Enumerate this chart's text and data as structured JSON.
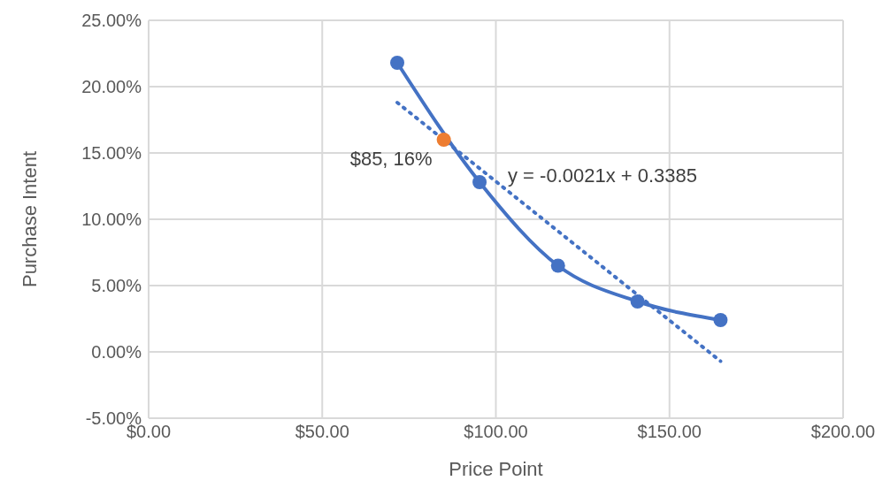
{
  "chart_data": {
    "type": "line",
    "xlabel": "Price Point",
    "ylabel": "Purchase Intent",
    "xlim": [
      0,
      200
    ],
    "xticks": [
      {
        "value": 0,
        "label": "$0.00"
      },
      {
        "value": 50,
        "label": "$50.00"
      },
      {
        "value": 100,
        "label": "$100.00"
      },
      {
        "value": 150,
        "label": "$150.00"
      },
      {
        "value": 200,
        "label": "$200.00"
      }
    ],
    "ylim": [
      -5,
      25
    ],
    "yticks": [
      {
        "value": -5,
        "label": "-5.00%"
      },
      {
        "value": 0,
        "label": "0.00%"
      },
      {
        "value": 5,
        "label": "5.00%"
      },
      {
        "value": 10,
        "label": "10.00%"
      },
      {
        "value": 15,
        "label": "15.00%"
      },
      {
        "value": 20,
        "label": "20.00%"
      },
      {
        "value": 25,
        "label": "25.00%"
      }
    ],
    "grid": true,
    "series": [
      {
        "type": "line",
        "color": "#4472c4",
        "marker": "circle",
        "line_style": "solid",
        "x": [
          71.6,
          95.3,
          117.9,
          140.8,
          164.7
        ],
        "values": [
          21.8,
          12.8,
          6.5,
          3.8,
          2.4
        ]
      },
      {
        "type": "line",
        "color": "#4472c4",
        "marker": "none",
        "line_style": "dotted",
        "x": [
          71.6,
          164.7
        ],
        "values": [
          18.8,
          -0.7
        ]
      },
      {
        "type": "scatter",
        "color": "#ed7d31",
        "marker": "circle",
        "x": [
          85
        ],
        "values": [
          16
        ]
      }
    ],
    "annotations": [
      {
        "text": "$85, 16%",
        "x": 85,
        "y": 16
      },
      "y = -0.0021x + 0.3385"
    ]
  }
}
